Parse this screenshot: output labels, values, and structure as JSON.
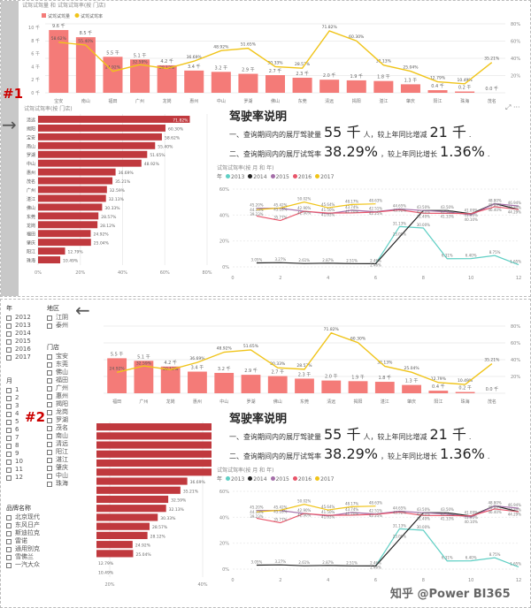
{
  "colors": {
    "bar": "#f47b78",
    "bar_light": "#f9c6c4",
    "line": "#f0c419",
    "hbar": "#c0393e",
    "y2013": "#5fcfc4",
    "y2014": "#222222",
    "y2015": "#a46ea8",
    "y2016": "#e8556a",
    "y2017": "#f0c419"
  },
  "markers": {
    "one": "#1",
    "two": "#2"
  },
  "combo": {
    "title": "试驾试驾量 和 试驾试驾率(按 门店)",
    "legend": [
      "试驾试驾量",
      "试驾试驾率"
    ],
    "stores": [
      "宝安",
      "南山",
      "福田",
      "广州",
      "龙岗",
      "惠州",
      "中山",
      "罗湖",
      "佛山",
      "东莞",
      "清远",
      "揭阳",
      "湛江",
      "肇庆",
      "阳江",
      "珠海",
      "茂名"
    ],
    "volume_k": [
      9.6,
      8.5,
      5.5,
      5.1,
      4.2,
      3.4,
      3.2,
      2.9,
      2.7,
      2.3,
      2.0,
      1.9,
      1.8,
      1.3,
      0.4,
      0.2,
      0.0
    ],
    "volume_labels": [
      "9.6 千",
      "8.5 千",
      "5.5 千",
      "5.1 千",
      "4.2 千",
      "3.4 千",
      "3.2 千",
      "2.9 千",
      "2.7 千",
      "2.3 千",
      "2.0 千",
      "1.9 千",
      "1.8 千",
      "1.3 千",
      "0.4 千",
      "0.2 千",
      "0.0 千"
    ],
    "rate": [
      58.62,
      55.4,
      24.92,
      32.59,
      28.12,
      36.69,
      48.92,
      51.65,
      30.33,
      28.57,
      71.82,
      60.3,
      32.13,
      25.04,
      12.79,
      10.49,
      35.21
    ],
    "y_ticks": [
      "0 千",
      "2 千",
      "4 千",
      "6 千",
      "8 千",
      "10 千"
    ],
    "y2_ticks": [
      "",
      "20%",
      "40%",
      "60%",
      "80%"
    ]
  },
  "hbar": {
    "title": "试驾试驾率(按 门店)",
    "stores": [
      "清远",
      "揭阳",
      "宝安",
      "南山",
      "罗湖",
      "中山",
      "惠州",
      "茂名",
      "广州",
      "湛江",
      "佛山",
      "东莞",
      "龙岗",
      "福田",
      "肇庆",
      "阳江",
      "珠海"
    ],
    "rate": [
      71.82,
      60.3,
      58.62,
      55.4,
      51.65,
      48.92,
      36.69,
      35.21,
      32.59,
      32.13,
      30.33,
      28.57,
      28.12,
      24.92,
      25.04,
      12.79,
      10.49
    ],
    "x_ticks": [
      "0%",
      "20%",
      "40%",
      "60%",
      "80%"
    ]
  },
  "card": {
    "title": "驾驶率说明",
    "line1_prefix": "一、查询期间内的展厅驾驶量",
    "line1_value": "55 千",
    "line1_mid": "人，较上年同比增减",
    "line1_value2": "21 千",
    "line1_end": ".",
    "line2_prefix": "二、查询期间内的展厅试驾率",
    "line2_value": "38.29%",
    "line2_mid": "，较上年同比增长",
    "line2_value2": "1.36%",
    "line2_end": "."
  },
  "line": {
    "title": "试驾试驾率(按 月 和 年)",
    "legend_label": "年",
    "x_ticks": [
      "0",
      "2",
      "4",
      "6",
      "8",
      "10",
      "12"
    ],
    "y_ticks": [
      "0%",
      "20%",
      "40%",
      "60%"
    ],
    "series": [
      {
        "name": "2013",
        "months": [
          6,
          7,
          8,
          9,
          10,
          11,
          12
        ],
        "values": [
          2.46,
          31.13,
          30.0,
          6.31,
          6.4,
          8.75,
          1.65
        ]
      },
      {
        "name": "2014",
        "months": [
          1,
          2,
          3,
          4,
          5,
          6,
          7,
          8,
          9,
          10,
          11,
          12
        ],
        "values": [
          3.05,
          3.27,
          2.61,
          2.87,
          2.51,
          2.46,
          23.0,
          43.5,
          43.5,
          41.0,
          48.8,
          44.3
        ]
      },
      {
        "name": "2015",
        "months": [
          1,
          2,
          3,
          4,
          5,
          6,
          7,
          8,
          9,
          10,
          11,
          12
        ],
        "values": [
          45.2,
          45.18,
          42.9,
          41.03,
          43.74,
          42.51,
          44.65,
          43.5,
          42.5,
          40.1,
          48.8,
          46.94
        ]
      },
      {
        "name": "2016",
        "months": [
          1,
          2,
          3,
          4,
          5,
          6,
          7,
          8,
          9,
          10,
          11,
          12
        ],
        "values": [
          39.23,
          35.77,
          42.9,
          41.5,
          41.7,
          42.25,
          43.92,
          41.4,
          41.33,
          41.09,
          46.4,
          44.29
        ]
      },
      {
        "name": "2017",
        "months": [
          1,
          2,
          3,
          4,
          5,
          6
        ],
        "values": [
          44.13,
          45.42,
          50.02,
          45.64,
          48.17,
          48.63
        ]
      }
    ]
  },
  "slicers": {
    "year": {
      "label": "年",
      "options": [
        "2012",
        "2013",
        "2014",
        "2015",
        "2016",
        "2017"
      ]
    },
    "month": {
      "label": "月",
      "options": [
        "1",
        "2",
        "3",
        "4",
        "5",
        "6",
        "7",
        "8",
        "9",
        "10",
        "11",
        "12"
      ]
    },
    "region": {
      "label": "地区",
      "options": [
        "江阴",
        "泰州"
      ]
    },
    "store": {
      "label": "门店",
      "options": [
        "宝安",
        "东莞",
        "佛山",
        "福田",
        "广州",
        "惠州",
        "揭阳",
        "龙岗",
        "罗湖",
        "茂名",
        "南山",
        "清远",
        "阳江",
        "湛江",
        "肇庆",
        "中山",
        "珠海"
      ]
    },
    "brand": {
      "label": "品牌名称",
      "options": [
        "北京现代",
        "东风日产",
        "斯迪拉克",
        "雷诺",
        "通用别克",
        "雪佛兰",
        "一汽大众"
      ]
    }
  },
  "watermark": "知乎 @Power BI365"
}
